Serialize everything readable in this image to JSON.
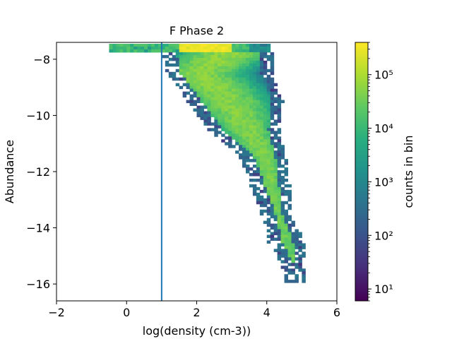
{
  "chart_data": {
    "type": "heatmap",
    "title": "F Phase 2",
    "xlabel": "log(density (cm-3))",
    "ylabel": "Abundance",
    "xlim": [
      -2,
      6
    ],
    "ylim": [
      -16.6,
      -7.4
    ],
    "x_ticks": [
      -2,
      0,
      2,
      4,
      6
    ],
    "x_tick_labels": [
      "−2",
      "0",
      "2",
      "4",
      "6"
    ],
    "y_ticks": [
      -16,
      -14,
      -12,
      -10,
      -8
    ],
    "y_tick_labels": [
      "−16",
      "−14",
      "−12",
      "−10",
      "−8"
    ],
    "vertical_line": {
      "x": 1.0,
      "color": "#1f77b4"
    },
    "bin_size": {
      "x": 0.1,
      "y": 0.1
    },
    "colorbar": {
      "label": "counts in bin",
      "scale": "log",
      "range": [
        6,
        400000
      ],
      "colormap": "viridis",
      "ticks": [
        10,
        100,
        1000,
        10000,
        100000
      ],
      "tick_labels": [
        "10¹",
        "10²",
        "10³",
        "10⁴",
        "10⁵"
      ]
    },
    "cloud": {
      "description_points": [
        {
          "y": -7.65,
          "x_min": 1.05,
          "x_max": 4.1,
          "peak_x": 3.0
        },
        {
          "y": -8.5,
          "x_min": 1.2,
          "x_max": 4.1,
          "peak_x": 2.0
        },
        {
          "y": -9.5,
          "x_min": 1.8,
          "x_max": 4.4,
          "peak_x": 2.9
        },
        {
          "y": -10.5,
          "x_min": 2.4,
          "x_max": 4.3,
          "peak_x": 3.4
        },
        {
          "y": -11.5,
          "x_min": 3.3,
          "x_max": 4.5,
          "peak_x": 3.9
        },
        {
          "y": -12.5,
          "x_min": 3.6,
          "x_max": 4.6,
          "peak_x": 4.1
        },
        {
          "y": -13.5,
          "x_min": 3.9,
          "x_max": 4.7,
          "peak_x": 4.3
        },
        {
          "y": -14.5,
          "x_min": 4.1,
          "x_max": 5.0,
          "peak_x": 4.5
        },
        {
          "y": -15.5,
          "x_min": 4.5,
          "x_max": 5.0,
          "peak_x": 4.8
        }
      ],
      "top_band": {
        "y": -7.55,
        "x_min": -0.45,
        "x_max": 3.5,
        "peak_x_range": [
          1.5,
          3.0
        ],
        "peak_count": 400000
      },
      "ridge_peak_count": 60000
    }
  }
}
